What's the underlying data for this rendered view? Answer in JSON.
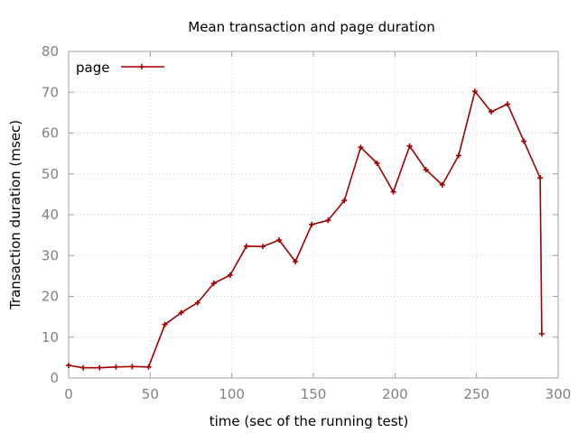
{
  "chart_data": {
    "type": "line",
    "title": "Mean transaction and page duration",
    "xlabel": "time (sec of the running test)",
    "ylabel": "Transaction duration (msec)",
    "xlim": [
      0,
      300
    ],
    "ylim": [
      0,
      80
    ],
    "x_ticks": [
      0,
      50,
      100,
      150,
      200,
      250,
      300
    ],
    "y_ticks": [
      0,
      10,
      20,
      30,
      40,
      50,
      60,
      70,
      80
    ],
    "grid": true,
    "legend_position": "top-left",
    "series": [
      {
        "name": "page",
        "color": "#a00000",
        "marker": "plus",
        "x": [
          0,
          9,
          19,
          29,
          39,
          49,
          59,
          69,
          79,
          89,
          99,
          109,
          119,
          129,
          139,
          149,
          159,
          169,
          179,
          189,
          199,
          209,
          219,
          229,
          239,
          249,
          259,
          269,
          279,
          289,
          290
        ],
        "y": [
          3.1,
          2.5,
          2.5,
          2.7,
          2.8,
          2.7,
          13.1,
          16.0,
          18.4,
          23.2,
          25.2,
          32.3,
          32.2,
          33.8,
          28.5,
          37.6,
          38.6,
          43.5,
          56.5,
          52.6,
          45.6,
          56.8,
          51.0,
          47.3,
          54.5,
          70.2,
          65.2,
          67.1,
          58.0,
          49.0,
          10.8
        ]
      }
    ]
  }
}
